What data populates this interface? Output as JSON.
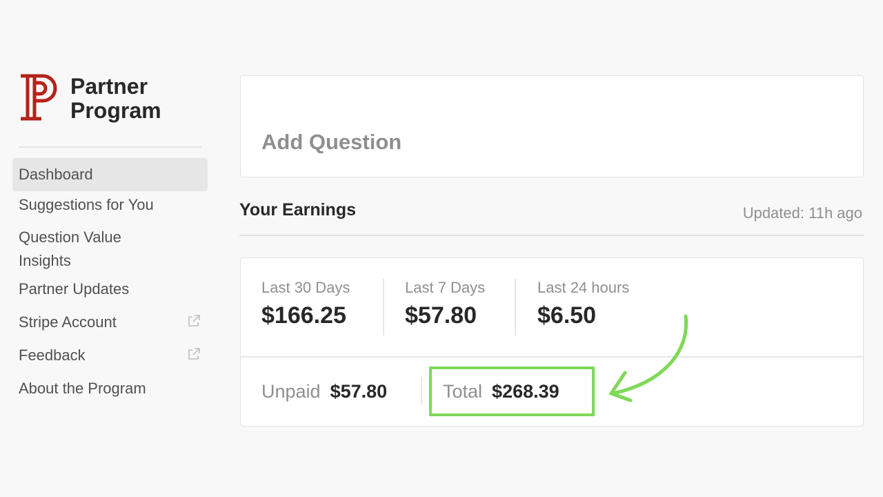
{
  "brand": {
    "name": "Partner Program",
    "logo_color": "#b42318"
  },
  "sidebar": {
    "items": [
      {
        "label": "Dashboard",
        "active": true
      },
      {
        "label": "Suggestions for You"
      },
      {
        "label": "Question Value Insights"
      },
      {
        "label": "Partner Updates"
      },
      {
        "label": "Stripe Account",
        "icon": "external-link-icon"
      },
      {
        "label": "Feedback",
        "icon": "external-link-icon"
      },
      {
        "label": "About the Program"
      }
    ]
  },
  "add_question": {
    "label": "Add Question"
  },
  "earnings": {
    "title": "Your Earnings",
    "updated": "Updated: 11h ago",
    "stats": [
      {
        "label": "Last 30 Days",
        "value": "$166.25"
      },
      {
        "label": "Last 7 Days",
        "value": "$57.80"
      },
      {
        "label": "Last 24 hours",
        "value": "$6.50"
      }
    ],
    "unpaid": {
      "label": "Unpaid",
      "value": "$57.80"
    },
    "total": {
      "label": "Total",
      "value": "$268.39"
    }
  },
  "annotation": {
    "color": "#7ed957",
    "icon": "curved-arrow-icon"
  }
}
